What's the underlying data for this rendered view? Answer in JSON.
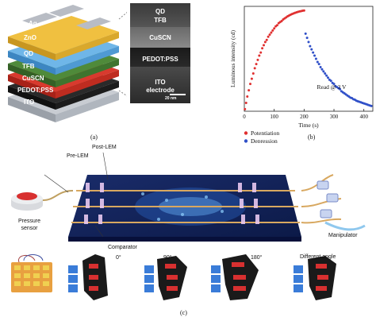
{
  "panel_a": {
    "label": "(a)",
    "layers": [
      "Ag",
      "ZnO",
      "QD",
      "TFB",
      "CuSCN",
      "PEDOT:PSS",
      "ITO"
    ],
    "tem": {
      "labels": [
        "QD",
        "TFB",
        "CuSCN",
        "PEDOT:PSS",
        "ITO",
        "electrode"
      ],
      "scale_bar": "20 nm"
    }
  },
  "panel_b": {
    "label": "(b)",
    "annotation": "Read @ 3 V",
    "legend": [
      "Potentiation",
      "Depression"
    ]
  },
  "panel_c": {
    "label": "(c)",
    "labels": {
      "post_lem": "Post-LEM",
      "pre_lem": "Pre-LEM",
      "pressure_sensor": "Pressure sensor",
      "comparator": "Comparator",
      "manipulator": "Manipulator",
      "angle_0": "0°",
      "angle_90": "90°",
      "angle_180": "180°",
      "different_angle": "Different angle"
    }
  },
  "chart_data": {
    "type": "scatter",
    "xlabel": "Time (s)",
    "ylabel": "Luminous intensity (cd)",
    "xlim": [
      0,
      430
    ],
    "x_ticks": [
      0,
      100,
      200,
      300,
      400
    ],
    "legend_position": "bottom-left",
    "series": [
      {
        "name": "Potentiation",
        "color": "#e03030",
        "x": [
          2,
          6,
          10,
          15,
          20,
          25,
          30,
          35,
          40,
          45,
          50,
          55,
          60,
          65,
          70,
          75,
          80,
          85,
          90,
          95,
          100,
          105,
          110,
          115,
          120,
          125,
          130,
          135,
          140,
          145,
          150,
          155,
          160,
          165,
          170,
          175,
          180,
          185,
          190,
          195,
          200
        ],
        "y": [
          0.02,
          0.08,
          0.14,
          0.2,
          0.26,
          0.31,
          0.36,
          0.41,
          0.45,
          0.49,
          0.53,
          0.56,
          0.6,
          0.63,
          0.66,
          0.68,
          0.71,
          0.73,
          0.75,
          0.77,
          0.79,
          0.81,
          0.82,
          0.84,
          0.85,
          0.86,
          0.875,
          0.885,
          0.895,
          0.905,
          0.913,
          0.92,
          0.927,
          0.933,
          0.938,
          0.943,
          0.948,
          0.952,
          0.955,
          0.958,
          0.96
        ]
      },
      {
        "name": "Depression",
        "color": "#3050c8",
        "x": [
          205,
          210,
          215,
          220,
          225,
          230,
          235,
          240,
          245,
          250,
          255,
          260,
          265,
          270,
          275,
          280,
          285,
          290,
          295,
          300,
          305,
          310,
          315,
          320,
          325,
          330,
          335,
          340,
          345,
          350,
          355,
          360,
          365,
          370,
          375,
          380,
          385,
          390,
          395,
          400,
          405,
          410,
          415,
          420,
          425
        ],
        "y": [
          0.74,
          0.7,
          0.66,
          0.62,
          0.59,
          0.56,
          0.53,
          0.5,
          0.47,
          0.45,
          0.42,
          0.4,
          0.38,
          0.36,
          0.34,
          0.32,
          0.3,
          0.29,
          0.27,
          0.26,
          0.24,
          0.23,
          0.22,
          0.21,
          0.19,
          0.18,
          0.17,
          0.16,
          0.15,
          0.14,
          0.13,
          0.125,
          0.115,
          0.11,
          0.1,
          0.095,
          0.09,
          0.085,
          0.08,
          0.075,
          0.07,
          0.065,
          0.06,
          0.055,
          0.05
        ]
      }
    ]
  }
}
